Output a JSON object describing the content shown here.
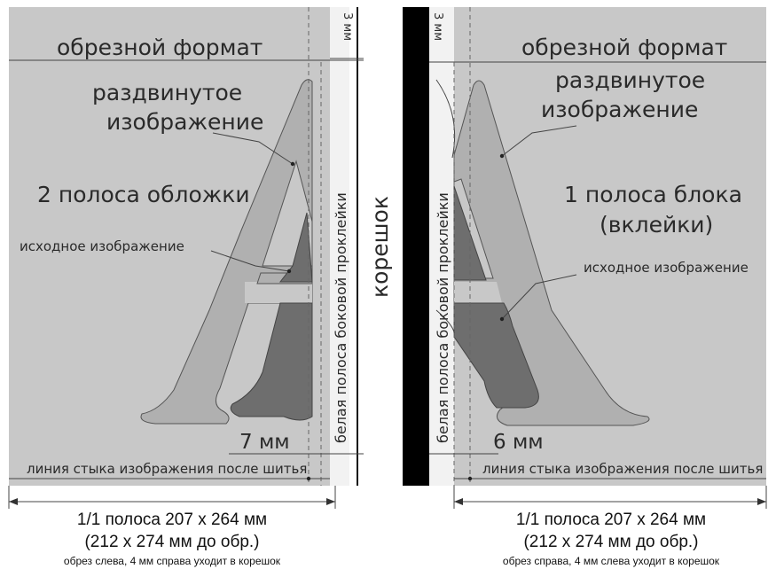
{
  "left_page": {
    "trim_format": "обрезной формат",
    "expanded_image": "раздвинутое изображение",
    "expanded_image_line1": "раздвинутое",
    "expanded_image_line2": "изображение",
    "page_name": "2 полоса обложки",
    "source_image": "исходное изображение",
    "offset": "7 мм",
    "seam_line": "линия стыка изображения после шитья",
    "top_margin": "3 мм",
    "glue_strip": "белая полоса боковой проклейки"
  },
  "spine_label": "корешок",
  "right_page": {
    "trim_format": "обрезной формат",
    "expanded_image_line1": "раздвинутое",
    "expanded_image_line2": "изображение",
    "page_name_line1": "1 полоса блока",
    "page_name_line2": "(вклейки)",
    "source_image": "исходное изображение",
    "offset": "6 мм",
    "seam_line": "линия стыка изображения после шитья",
    "top_margin": "3 мм",
    "glue_strip": "белая полоса боковой проклейки"
  },
  "captions": {
    "left_line1": "1/1 полоса 207 x 264 мм",
    "left_line2": "(212 x 274 мм до обр.)",
    "left_line3": "обрез слева, 4 мм справа уходит в корешок",
    "right_line1": "1/1 полоса 207 x 264 мм",
    "right_line2": "(212 x 274 мм до обр.)",
    "right_line3": "обрез справа, 4 мм слева уходит в корешок"
  },
  "colors": {
    "page_background": "#c8c8c8",
    "expanded_letter": "#b0b0b0",
    "source_letter": "#6e6e6e",
    "white_strip": "#f2f2f2",
    "spine_black": "#000000"
  }
}
